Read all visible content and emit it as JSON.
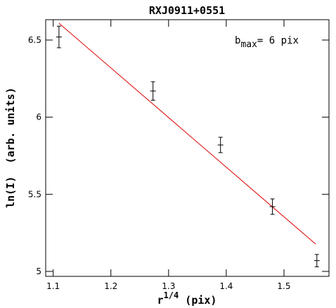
{
  "chart_data": {
    "type": "scatter",
    "title": "RXJ0911+0551",
    "x_label": {
      "base": "r",
      "sup": "1/4",
      "rest": " (pix)"
    },
    "y_label": "ln(I)  (arb. units)",
    "annotation": {
      "base": "b",
      "sub": "max",
      "rest": "= 6 pix"
    },
    "x": [
      1.11,
      1.273,
      1.39,
      1.48,
      1.557
    ],
    "values": [
      6.52,
      6.17,
      5.82,
      5.42,
      5.07
    ],
    "errors": [
      0.07,
      0.06,
      0.05,
      0.05,
      0.04
    ],
    "color": "#000000",
    "fit": {
      "x": [
        1.11,
        1.555
      ],
      "values": [
        6.609,
        5.177
      ],
      "color": "#dd0000"
    },
    "xlim": [
      1.087,
      1.578
    ],
    "xticks": [
      1.1,
      1.2,
      1.3,
      1.4,
      1.5
    ],
    "ylim": [
      4.968,
      6.632
    ],
    "yticks": [
      5,
      5.5,
      6,
      6.5
    ]
  }
}
